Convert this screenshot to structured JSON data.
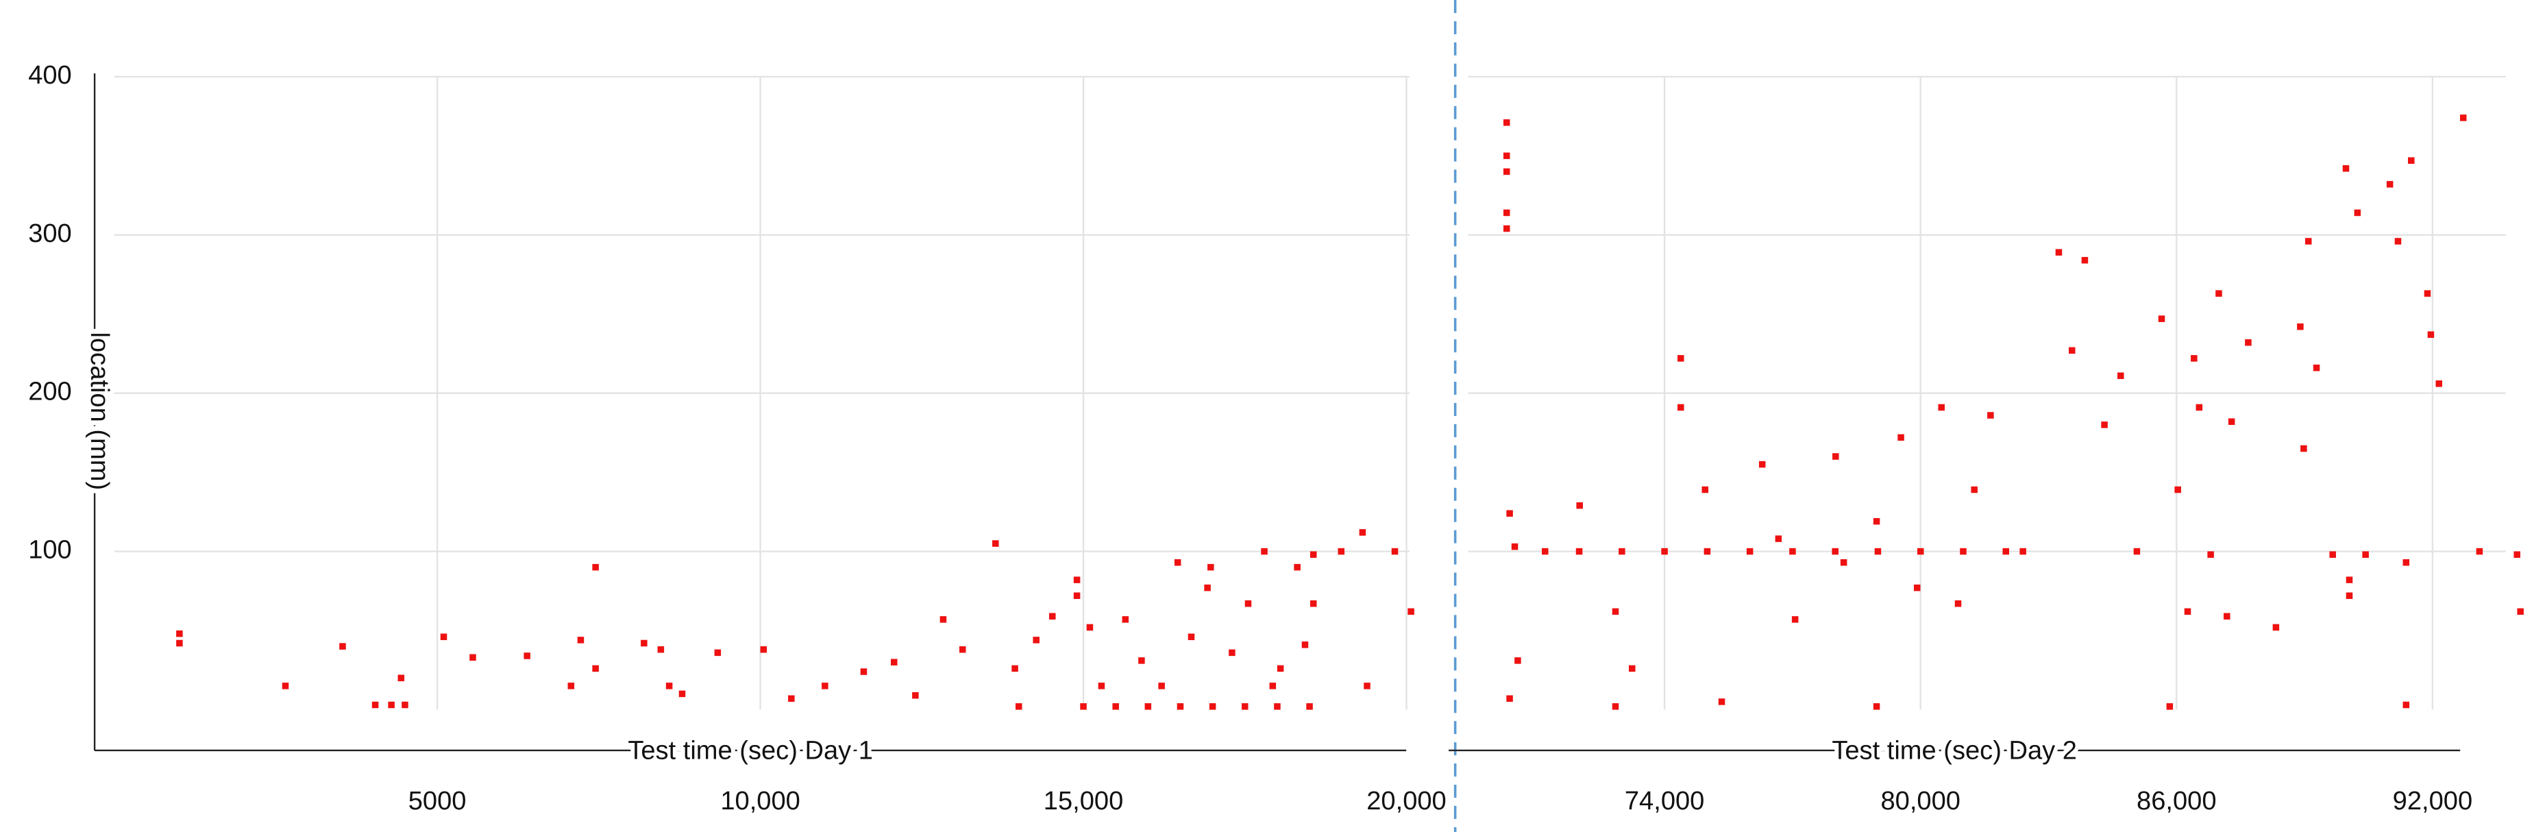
{
  "chart_data": [
    {
      "type": "scatter",
      "x_label": "Test time (sec) Day 1",
      "y_label": "location (mm)",
      "color": "#ee1111",
      "x": [
        1010,
        1010,
        2650,
        3535,
        4040,
        4290,
        4500,
        4440,
        5100,
        5550,
        6390,
        7070,
        7220,
        7450,
        7450,
        8200,
        8460,
        8590,
        8790,
        9340,
        10050,
        10480,
        11000,
        11600,
        12070,
        12400,
        12830,
        13130,
        13640,
        13940,
        14270,
        14520,
        14900,
        14900,
        15100,
        15280,
        15650,
        15900,
        16210,
        16460,
        16670,
        16920,
        16970,
        17300,
        17550,
        17800,
        17930,
        18050,
        18310,
        18430,
        18560,
        18560,
        18990,
        19320,
        19390,
        19820,
        20070,
        14000,
        15000,
        15500,
        16000,
        16500,
        17000,
        17500,
        18000,
        18500
      ],
      "values": [
        48,
        42,
        15,
        40,
        3,
        3,
        3,
        20,
        46,
        33,
        34,
        15,
        44,
        90,
        26,
        42,
        38,
        15,
        10,
        36,
        38,
        7,
        15,
        24,
        30,
        9,
        57,
        38,
        105,
        26,
        44,
        59,
        82,
        72,
        52,
        15,
        57,
        31,
        15,
        93,
        46,
        77,
        90,
        36,
        67,
        100,
        15,
        26,
        90,
        41,
        98,
        67,
        100,
        112,
        15,
        100,
        62,
        2,
        2,
        2,
        2,
        2,
        2,
        2,
        2,
        2
      ],
      "xlim": [
        0,
        20300
      ],
      "ylim": [
        0,
        400
      ],
      "xticks": [
        5000,
        {
          "value": 10000,
          "label": "10,000"
        },
        {
          "value": 15000,
          "label": "15,000"
        },
        {
          "value": 20000,
          "label": "20,000"
        }
      ],
      "yticks": [
        100,
        200,
        300,
        400
      ],
      "grid": true
    },
    {
      "type": "scatter",
      "x_label": "Test time (sec) Day 2",
      "color": "#ee1111",
      "x": [
        70300,
        70300,
        70300,
        70300,
        70300,
        70370,
        70490,
        70560,
        70370,
        71200,
        72000,
        73000,
        74000,
        75000,
        76000,
        77000,
        78000,
        79000,
        80000,
        81000,
        82000,
        72010,
        72850,
        73240,
        74380,
        74380,
        74950,
        75340,
        76290,
        76670,
        77060,
        78010,
        78200,
        78970,
        79540,
        79920,
        80490,
        80880,
        81260,
        81640,
        82400,
        83240,
        83850,
        83550,
        84310,
        84690,
        85070,
        85650,
        86030,
        86410,
        86530,
        86800,
        86990,
        87290,
        86260,
        87180,
        87680,
        88330,
        88900,
        89090,
        88980,
        89280,
        89660,
        90050,
        90050,
        89970,
        90240,
        90430,
        91000,
        91190,
        91380,
        91880,
        91500,
        92150,
        91960,
        92720,
        93100,
        93980,
        94060,
        91380,
        85840,
        78970,
        72850
      ],
      "values": [
        371,
        350,
        340,
        314,
        304,
        124,
        103,
        31,
        7,
        100,
        100,
        100,
        100,
        100,
        100,
        100,
        100,
        100,
        100,
        100,
        100,
        129,
        62,
        26,
        222,
        191,
        139,
        5,
        155,
        108,
        57,
        160,
        93,
        119,
        172,
        77,
        191,
        67,
        139,
        186,
        100,
        289,
        284,
        227,
        180,
        211,
        100,
        247,
        139,
        222,
        191,
        98,
        263,
        182,
        62,
        59,
        232,
        52,
        242,
        296,
        165,
        216,
        98,
        82,
        72,
        342,
        314,
        98,
        332,
        296,
        93,
        263,
        347,
        206,
        237,
        374,
        100,
        98,
        62,
        3,
        2,
        2,
        2
      ],
      "xlim": [
        69400,
        94100
      ],
      "ylim": [
        0,
        400
      ],
      "xticks": [
        {
          "value": 74000,
          "label": "74,000"
        },
        {
          "value": 80000,
          "label": "80,000"
        },
        {
          "value": 86000,
          "label": "86,000"
        },
        {
          "value": 92000,
          "label": "92,000"
        }
      ],
      "grid": true
    }
  ]
}
